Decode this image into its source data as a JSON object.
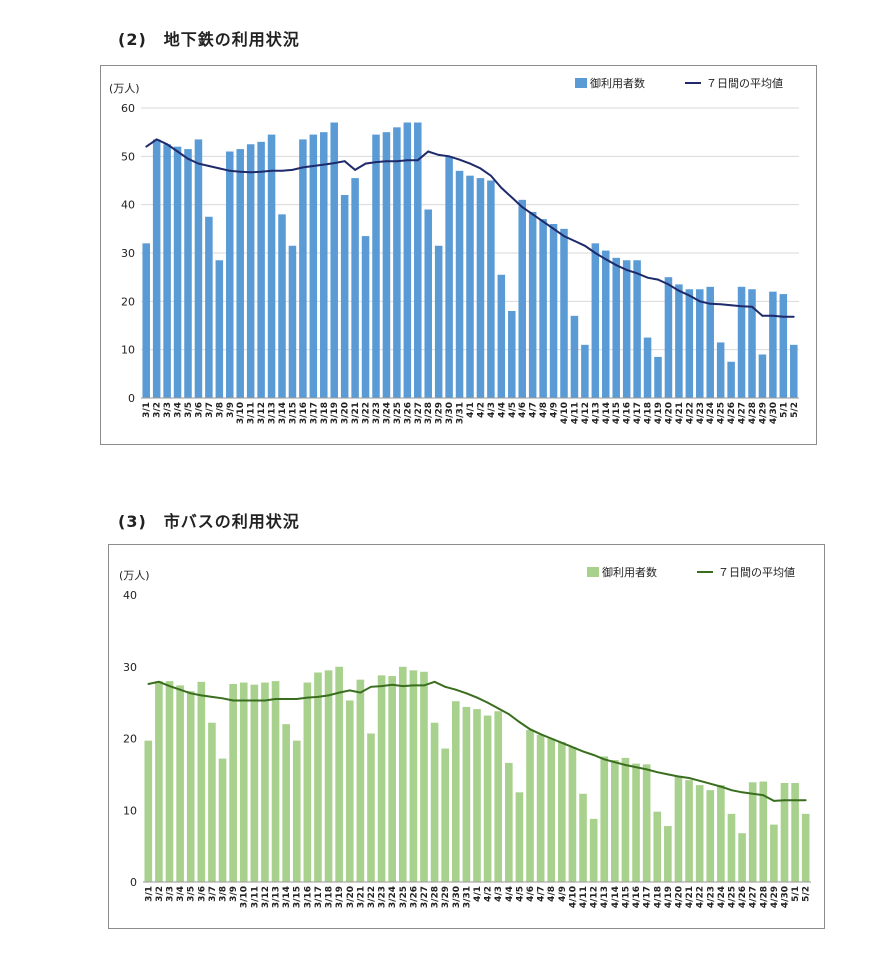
{
  "sections": [
    {
      "title": "(2)　地下鉄の利用状況"
    },
    {
      "title": "(3)　市バスの利用状況"
    }
  ],
  "colors": {
    "subway_bar": "#5b9bd5",
    "subway_line": "#1f2a6b",
    "bus_bar": "#a9d18e",
    "bus_line": "#3a6e1f"
  },
  "chart_data": [
    {
      "type": "bar",
      "unit_label": "(万人)",
      "ylim": [
        0,
        60
      ],
      "yticks": [
        0,
        10,
        20,
        30,
        40,
        50,
        60
      ],
      "grid": true,
      "legend_position": "top-right",
      "categories": [
        "3/1",
        "3/2",
        "3/3",
        "3/4",
        "3/5",
        "3/6",
        "3/7",
        "3/8",
        "3/9",
        "3/10",
        "3/11",
        "3/12",
        "3/13",
        "3/14",
        "3/15",
        "3/16",
        "3/17",
        "3/18",
        "3/19",
        "3/20",
        "3/21",
        "3/22",
        "3/23",
        "3/24",
        "3/25",
        "3/26",
        "3/27",
        "3/28",
        "3/29",
        "3/30",
        "3/31",
        "4/1",
        "4/2",
        "4/3",
        "4/4",
        "4/5",
        "4/6",
        "4/7",
        "4/8",
        "4/9",
        "4/10",
        "4/11",
        "4/12",
        "4/13",
        "4/14",
        "4/15",
        "4/16",
        "4/17",
        "4/18",
        "4/19",
        "4/20",
        "4/21",
        "4/22",
        "4/23",
        "4/24",
        "4/25",
        "4/26",
        "4/27",
        "4/28",
        "4/29",
        "4/30",
        "5/1",
        "5/2"
      ],
      "series": [
        {
          "name": "御利用者数",
          "kind": "bar",
          "values": [
            32,
            53.5,
            52.5,
            52,
            51.5,
            53.5,
            37.5,
            28.5,
            51,
            51.5,
            52.5,
            53,
            54.5,
            38,
            31.5,
            53.5,
            54.5,
            55,
            57,
            42,
            45.5,
            33.5,
            54.5,
            55,
            56,
            57,
            57,
            39,
            31.5,
            50,
            47,
            46,
            45.5,
            45,
            25.5,
            18,
            41,
            38.5,
            37,
            36,
            35,
            17,
            11,
            32,
            30.5,
            29,
            28.5,
            28.5,
            12.5,
            8.5,
            25,
            23.5,
            22.5,
            22.5,
            23,
            11.5,
            7.5,
            23,
            22.5,
            9,
            22,
            21.5,
            11
          ]
        },
        {
          "name": "７日間の平均値",
          "kind": "line",
          "values": [
            52,
            53.5,
            52.5,
            51,
            49.5,
            48.5,
            48,
            47.5,
            47,
            46.8,
            46.7,
            46.8,
            47,
            47,
            47.2,
            47.7,
            48,
            48.3,
            48.6,
            49,
            47.2,
            48.5,
            48.8,
            49,
            49,
            49.2,
            49.2,
            51,
            50.3,
            50,
            49.3,
            48.5,
            47.5,
            46,
            43.5,
            41.5,
            39.5,
            38,
            36.5,
            35,
            33.5,
            32.5,
            31.5,
            30,
            28.7,
            27.5,
            26.5,
            25.8,
            24.9,
            24.5,
            23.5,
            22.2,
            21.2,
            20,
            19.5,
            19.4,
            19.2,
            19,
            18.9,
            17,
            17,
            16.8,
            16.8
          ]
        }
      ]
    },
    {
      "type": "bar",
      "unit_label": "(万人)",
      "ylim": [
        0,
        40
      ],
      "yticks": [
        0,
        10,
        20,
        30,
        40
      ],
      "grid": false,
      "legend_position": "top-right",
      "categories": [
        "3/1",
        "3/2",
        "3/3",
        "3/4",
        "3/5",
        "3/6",
        "3/7",
        "3/8",
        "3/9",
        "3/10",
        "3/11",
        "3/12",
        "3/13",
        "3/14",
        "3/15",
        "3/16",
        "3/17",
        "3/18",
        "3/19",
        "3/20",
        "3/21",
        "3/22",
        "3/23",
        "3/24",
        "3/25",
        "3/26",
        "3/27",
        "3/28",
        "3/29",
        "3/30",
        "3/31",
        "4/1",
        "4/2",
        "4/3",
        "4/4",
        "4/5",
        "4/6",
        "4/7",
        "4/8",
        "4/9",
        "4/10",
        "4/11",
        "4/12",
        "4/13",
        "4/14",
        "4/15",
        "4/16",
        "4/17",
        "4/18",
        "4/19",
        "4/20",
        "4/21",
        "4/22",
        "4/23",
        "4/24",
        "4/25",
        "4/26",
        "4/27",
        "4/28",
        "4/29",
        "4/30",
        "5/1",
        "5/2"
      ],
      "series": [
        {
          "name": "御利用者数",
          "kind": "bar",
          "values": [
            19.7,
            28,
            28,
            27.4,
            26.6,
            27.9,
            22.2,
            17.2,
            27.6,
            27.8,
            27.5,
            27.8,
            28,
            22,
            19.7,
            27.8,
            29.2,
            29.5,
            30,
            25.3,
            28.2,
            20.7,
            28.8,
            28.7,
            30,
            29.5,
            29.3,
            22.2,
            18.6,
            25.2,
            24.4,
            24.1,
            23.2,
            23.8,
            16.6,
            12.5,
            21.2,
            20.5,
            20,
            19.5,
            18.8,
            12.3,
            8.8,
            17.5,
            17,
            17.3,
            16.5,
            16.4,
            9.8,
            7.8,
            14.8,
            14.2,
            13.5,
            12.8,
            13.5,
            9.5,
            6.8,
            13.9,
            14,
            8,
            13.8,
            13.8,
            9.5
          ]
        },
        {
          "name": "７日間の平均値",
          "kind": "line",
          "values": [
            27.6,
            27.9,
            27.3,
            26.8,
            26.3,
            26,
            25.8,
            25.6,
            25.3,
            25.3,
            25.3,
            25.3,
            25.5,
            25.5,
            25.5,
            25.7,
            25.8,
            26,
            26.4,
            26.7,
            26.4,
            27.2,
            27.3,
            27.5,
            27.3,
            27.4,
            27.4,
            27.9,
            27.2,
            26.8,
            26.3,
            25.7,
            25,
            24.2,
            23.4,
            22.3,
            21.3,
            20.6,
            20,
            19.4,
            18.8,
            18.2,
            17.7,
            17.1,
            16.7,
            16.3,
            16,
            15.7,
            15.3,
            15,
            14.7,
            14.5,
            14.1,
            13.7,
            13.3,
            12.8,
            12.5,
            12.3,
            12.1,
            11.3,
            11.4,
            11.4,
            11.4
          ]
        }
      ]
    }
  ]
}
